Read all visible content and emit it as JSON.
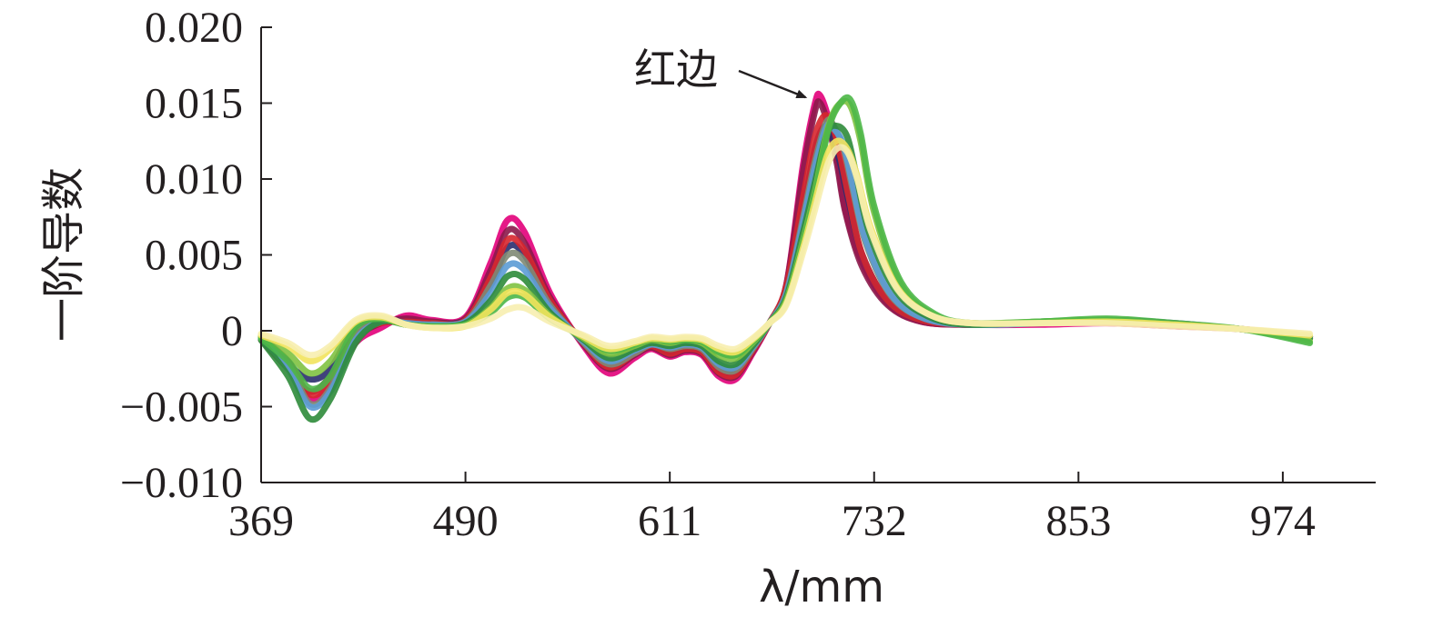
{
  "chart_data": {
    "type": "line",
    "title": "",
    "xlabel": "λ/mm",
    "ylabel": "一阶导数",
    "xlim": [
      369,
      1029
    ],
    "ylim": [
      -0.01,
      0.02
    ],
    "x_ticks": [
      369,
      490,
      611,
      732,
      853,
      974
    ],
    "x_tick_labels": [
      "369",
      "490",
      "611",
      "732",
      "853",
      "974"
    ],
    "y_ticks": [
      -0.01,
      -0.005,
      0,
      0.005,
      0.01,
      0.015,
      0.02
    ],
    "y_tick_labels": [
      "−0.010",
      "−0.005",
      "0",
      "0.005",
      "0.010",
      "0.015",
      "0.020"
    ],
    "grid": false,
    "legend": "none",
    "annotation": {
      "text": "红边",
      "target_x": 700,
      "target_y": 0.0155
    },
    "representative_series": [
      {
        "color": "#e2007a",
        "x": [
          369,
          385,
          398,
          410,
          425,
          440,
          455,
          470,
          490,
          505,
          515,
          525,
          540,
          560,
          575,
          590,
          600,
          611,
          620,
          630,
          640,
          650,
          660,
          670,
          680,
          690,
          697,
          700,
          705,
          710,
          715,
          725,
          740,
          760,
          790,
          830,
          870,
          910,
          950,
          990
        ],
        "y": [
          -0.0005,
          -0.002,
          -0.0045,
          -0.0035,
          -0.0008,
          0.0002,
          0.001,
          0.0007,
          0.0009,
          0.0045,
          0.0073,
          0.0065,
          0.0025,
          -0.001,
          -0.0028,
          -0.0018,
          -0.0012,
          -0.0017,
          -0.0014,
          -0.0016,
          -0.003,
          -0.0032,
          -0.0015,
          0.0005,
          0.003,
          0.011,
          0.015,
          0.0155,
          0.014,
          0.0115,
          0.008,
          0.0045,
          0.0018,
          0.0006,
          0.0004,
          0.0004,
          0.0005,
          0.0003,
          0.0001,
          -0.0004
        ]
      },
      {
        "color": "#8b1a4a",
        "x": [
          369,
          385,
          398,
          410,
          425,
          440,
          455,
          470,
          490,
          505,
          515,
          525,
          540,
          560,
          575,
          590,
          600,
          611,
          620,
          630,
          640,
          650,
          660,
          670,
          680,
          690,
          697,
          700,
          705,
          710,
          715,
          725,
          740,
          760,
          790,
          830,
          870,
          910,
          950,
          990
        ],
        "y": [
          -0.0006,
          -0.0025,
          -0.004,
          -0.003,
          -0.0005,
          0.0005,
          0.0008,
          0.0006,
          0.0008,
          0.004,
          0.0066,
          0.0058,
          0.0022,
          -0.0009,
          -0.0025,
          -0.0016,
          -0.0011,
          -0.0016,
          -0.0013,
          -0.0015,
          -0.0028,
          -0.003,
          -0.0014,
          0.0005,
          0.003,
          0.0105,
          0.0145,
          0.015,
          0.0135,
          0.011,
          0.0078,
          0.0042,
          0.0017,
          0.0006,
          0.0004,
          0.0005,
          0.0006,
          0.0004,
          0.0001,
          -0.0005
        ]
      },
      {
        "color": "#2b2e6e",
        "x": [
          369,
          385,
          398,
          410,
          425,
          440,
          455,
          470,
          490,
          505,
          515,
          525,
          540,
          560,
          575,
          590,
          600,
          611,
          620,
          630,
          640,
          650,
          660,
          670,
          680,
          690,
          697,
          703,
          708,
          712,
          717,
          725,
          740,
          760,
          790,
          830,
          870,
          910,
          950,
          990
        ],
        "y": [
          -0.0005,
          -0.0022,
          -0.0032,
          -0.0025,
          0.0003,
          0.0007,
          0.0006,
          0.0005,
          0.0007,
          0.003,
          0.0055,
          0.005,
          0.0018,
          -0.0007,
          -0.0022,
          -0.0014,
          -0.001,
          -0.0014,
          -0.0011,
          -0.0013,
          -0.0025,
          -0.0027,
          -0.0012,
          0.0005,
          0.0028,
          0.008,
          0.012,
          0.0135,
          0.0125,
          0.011,
          0.0085,
          0.005,
          0.002,
          0.0007,
          0.0004,
          0.0005,
          0.0007,
          0.0005,
          0.0001,
          -0.0004
        ]
      },
      {
        "color": "#d7262d",
        "x": [
          369,
          385,
          398,
          410,
          425,
          440,
          455,
          470,
          490,
          505,
          515,
          525,
          540,
          560,
          575,
          590,
          600,
          611,
          620,
          630,
          640,
          650,
          660,
          670,
          680,
          690,
          697,
          703,
          708,
          712,
          717,
          725,
          740,
          760,
          790,
          830,
          870,
          910,
          950,
          990
        ],
        "y": [
          -0.0004,
          -0.002,
          -0.0042,
          -0.0033,
          -0.0003,
          0.0005,
          0.0006,
          0.0005,
          0.0007,
          0.0035,
          0.006,
          0.0053,
          0.002,
          -0.0008,
          -0.0024,
          -0.0015,
          -0.001,
          -0.0015,
          -0.0012,
          -0.0014,
          -0.0027,
          -0.0029,
          -0.0013,
          0.0005,
          0.0029,
          0.0088,
          0.0128,
          0.0142,
          0.0133,
          0.0115,
          0.0088,
          0.005,
          0.002,
          0.0007,
          0.0004,
          0.0005,
          0.0006,
          0.0004,
          0.0001,
          -0.0004
        ]
      },
      {
        "color": "#808a74",
        "x": [
          369,
          385,
          398,
          410,
          425,
          440,
          455,
          470,
          490,
          505,
          515,
          525,
          540,
          560,
          575,
          590,
          600,
          611,
          620,
          630,
          640,
          650,
          660,
          670,
          680,
          690,
          697,
          704,
          709,
          714,
          719,
          727,
          742,
          762,
          790,
          830,
          870,
          910,
          950,
          990
        ],
        "y": [
          -0.0004,
          -0.0022,
          -0.0048,
          -0.0038,
          -0.0004,
          0.0007,
          0.0005,
          0.0004,
          0.0006,
          0.003,
          0.005,
          0.0046,
          0.0017,
          -0.0008,
          -0.0022,
          -0.0015,
          -0.0009,
          -0.0012,
          -0.001,
          -0.0012,
          -0.0024,
          -0.0026,
          -0.0012,
          0.0005,
          0.0025,
          0.0075,
          0.0112,
          0.0138,
          0.0133,
          0.012,
          0.0095,
          0.0058,
          0.0023,
          0.0008,
          0.0004,
          0.0005,
          0.0006,
          0.0004,
          0.0001,
          -0.0004
        ]
      },
      {
        "color": "#5b9bd5",
        "x": [
          369,
          385,
          398,
          410,
          425,
          440,
          455,
          470,
          490,
          505,
          515,
          525,
          540,
          560,
          575,
          590,
          600,
          611,
          620,
          630,
          640,
          650,
          660,
          670,
          680,
          690,
          697,
          704,
          709,
          714,
          719,
          727,
          742,
          762,
          790,
          830,
          870,
          910,
          950,
          990
        ],
        "y": [
          -0.0005,
          -0.0025,
          -0.005,
          -0.004,
          -0.0006,
          0.0006,
          0.0005,
          0.0004,
          0.0006,
          0.0025,
          0.0043,
          0.004,
          0.0015,
          -0.0007,
          -0.002,
          -0.0013,
          -0.0009,
          -0.0011,
          -0.0009,
          -0.0011,
          -0.0022,
          -0.0024,
          -0.0011,
          0.0005,
          0.0024,
          0.0072,
          0.0108,
          0.0135,
          0.0132,
          0.0122,
          0.0098,
          0.006,
          0.0024,
          0.0008,
          0.0004,
          0.0005,
          0.0006,
          0.0004,
          0.0001,
          -0.0004
        ]
      },
      {
        "color": "#2e8b3a",
        "x": [
          369,
          385,
          398,
          410,
          425,
          440,
          455,
          470,
          490,
          505,
          515,
          525,
          540,
          560,
          575,
          590,
          600,
          611,
          620,
          630,
          640,
          650,
          660,
          670,
          680,
          690,
          697,
          704,
          710,
          716,
          721,
          729,
          745,
          765,
          790,
          830,
          870,
          910,
          950,
          990
        ],
        "y": [
          -0.0006,
          -0.003,
          -0.0058,
          -0.0045,
          -0.0008,
          0.0006,
          0.0004,
          0.0003,
          0.0005,
          0.002,
          0.0036,
          0.0034,
          0.0012,
          -0.0006,
          -0.0018,
          -0.0012,
          -0.0008,
          -0.001,
          -0.0008,
          -0.001,
          -0.002,
          -0.0022,
          -0.001,
          0.0005,
          0.0022,
          0.0065,
          0.0098,
          0.013,
          0.0135,
          0.0128,
          0.0105,
          0.0065,
          0.0026,
          0.0009,
          0.0004,
          0.0006,
          0.0007,
          0.0004,
          0.0001,
          -0.0005
        ]
      },
      {
        "color": "#7fc241",
        "x": [
          369,
          385,
          398,
          410,
          425,
          440,
          455,
          470,
          490,
          505,
          515,
          525,
          540,
          560,
          575,
          590,
          600,
          611,
          620,
          630,
          640,
          650,
          660,
          670,
          680,
          690,
          697,
          705,
          712,
          718,
          724,
          732,
          748,
          768,
          790,
          830,
          870,
          910,
          950,
          990
        ],
        "y": [
          -0.0004,
          -0.0015,
          -0.0028,
          -0.002,
          0.0004,
          0.0008,
          0.0004,
          0.0003,
          0.0004,
          0.0015,
          0.0028,
          0.0027,
          0.001,
          -0.0005,
          -0.0015,
          -0.001,
          -0.0006,
          -0.0008,
          -0.0006,
          -0.0008,
          -0.0016,
          -0.0018,
          -0.0008,
          0.0005,
          0.002,
          0.006,
          0.0092,
          0.0135,
          0.015,
          0.0148,
          0.0125,
          0.0078,
          0.003,
          0.001,
          0.0005,
          0.0006,
          0.0007,
          0.0004,
          0.0001,
          -0.0007
        ]
      },
      {
        "color": "#4cb748",
        "x": [
          369,
          385,
          398,
          410,
          425,
          440,
          455,
          470,
          490,
          505,
          515,
          525,
          540,
          560,
          575,
          590,
          600,
          611,
          620,
          630,
          640,
          650,
          660,
          670,
          680,
          690,
          697,
          705,
          712,
          718,
          724,
          732,
          748,
          768,
          790,
          830,
          870,
          910,
          950,
          990
        ],
        "y": [
          -0.0005,
          -0.002,
          -0.0038,
          -0.003,
          0.0002,
          0.0008,
          0.0004,
          0.0003,
          0.0004,
          0.0012,
          0.0022,
          0.0022,
          0.0008,
          -0.0004,
          -0.0013,
          -0.0009,
          -0.0005,
          -0.0007,
          -0.0006,
          -0.0007,
          -0.0014,
          -0.0016,
          -0.0007,
          0.0005,
          0.0019,
          0.0058,
          0.009,
          0.0133,
          0.015,
          0.0152,
          0.013,
          0.0082,
          0.0032,
          0.0011,
          0.0005,
          0.0006,
          0.0008,
          0.0005,
          0.0001,
          -0.0008
        ]
      },
      {
        "color": "#f2e35c",
        "x": [
          369,
          385,
          398,
          410,
          425,
          440,
          455,
          470,
          490,
          505,
          515,
          525,
          540,
          560,
          575,
          590,
          600,
          611,
          620,
          630,
          640,
          650,
          660,
          670,
          680,
          690,
          697,
          704,
          710,
          716,
          722,
          730,
          746,
          766,
          790,
          830,
          870,
          910,
          950,
          990
        ],
        "y": [
          -0.0003,
          -0.001,
          -0.002,
          -0.0012,
          0.0006,
          0.0009,
          0.0004,
          0.0002,
          0.0003,
          0.0014,
          0.0025,
          0.0024,
          0.0009,
          -0.0004,
          -0.0012,
          -0.0008,
          -0.0005,
          -0.0006,
          -0.0005,
          -0.0006,
          -0.0012,
          -0.0014,
          -0.0006,
          0.0005,
          0.0018,
          0.0055,
          0.0085,
          0.0115,
          0.0125,
          0.012,
          0.0102,
          0.0068,
          0.0028,
          0.001,
          0.0005,
          0.0005,
          0.0006,
          0.0004,
          0.0001,
          -0.0003
        ]
      },
      {
        "color": "#f7eeb0",
        "x": [
          369,
          385,
          398,
          410,
          425,
          440,
          455,
          470,
          490,
          505,
          515,
          525,
          540,
          560,
          575,
          590,
          600,
          611,
          620,
          630,
          640,
          650,
          660,
          670,
          680,
          690,
          697,
          704,
          710,
          716,
          722,
          730,
          746,
          766,
          790,
          830,
          870,
          910,
          950,
          990
        ],
        "y": [
          -0.0002,
          -0.0008,
          -0.0016,
          -0.001,
          0.0007,
          0.001,
          0.0004,
          0.0002,
          0.0003,
          0.0008,
          0.0014,
          0.0015,
          0.0006,
          -0.0003,
          -0.001,
          -0.0007,
          -0.0004,
          -0.0005,
          -0.0004,
          -0.0005,
          -0.001,
          -0.0012,
          -0.0005,
          0.0005,
          0.0017,
          0.0052,
          0.008,
          0.0108,
          0.012,
          0.0118,
          0.01,
          0.0066,
          0.0027,
          0.001,
          0.0005,
          0.0005,
          0.0005,
          0.0003,
          0.0001,
          -0.0002
        ]
      }
    ]
  }
}
